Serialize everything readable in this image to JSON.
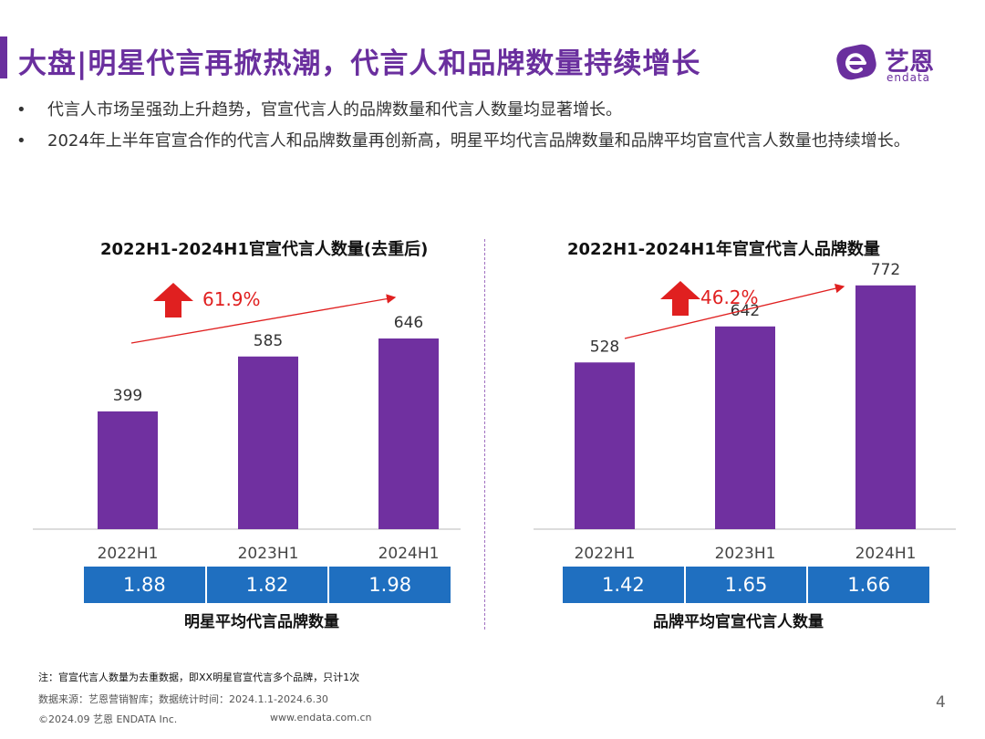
{
  "header": {
    "title": "大盘|明星代言再掀热潮，代言人和品牌数量持续增长",
    "logo_cn": "艺恩",
    "logo_en": "endata"
  },
  "bullets": [
    "代言人市场呈强劲上升趋势，官宣代言人的品牌数量和代言人数量均显著增长。",
    "2024年上半年官宣合作的代言人和品牌数量再创新高，明星平均代言品牌数量和品牌平均官宣代言人数量也持续增长。"
  ],
  "bullet_symbol": "•",
  "colors": {
    "bar": "#7030a0",
    "accent": "#6a2f9e",
    "table": "#1f6fc0",
    "growth": "#e02020"
  },
  "chart_data": [
    {
      "type": "bar",
      "title": "2022H1-2024H1官宣代言人数量(去重后)",
      "categories": [
        "2022H1",
        "2023H1",
        "2024H1"
      ],
      "values": [
        399,
        585,
        646
      ],
      "ylim": [
        0,
        800
      ],
      "growth_label": "61.9%",
      "table_values": [
        "1.88",
        "1.82",
        "1.98"
      ],
      "table_label": "明星平均代言品牌数量"
    },
    {
      "type": "bar",
      "title": "2022H1-2024H1年官宣代言人品牌数量",
      "categories": [
        "2022H1",
        "2023H1",
        "2024H1"
      ],
      "values": [
        528,
        642,
        772
      ],
      "ylim": [
        0,
        800
      ],
      "growth_label": "46.2%",
      "table_values": [
        "1.42",
        "1.65",
        "1.66"
      ],
      "table_label": "品牌平均官宣代言人数量"
    }
  ],
  "footer": {
    "note": "注：官宣代言人数量为去重数据，即XX明星官宣代言多个品牌，只计1次",
    "source": "数据来源：艺恩营销智库；数据统计时间：2024.1.1-2024.6.30",
    "copyright": "©2024.09 艺恩 ENDATA Inc.",
    "website": "www.endata.com.cn",
    "page_number": "4"
  }
}
